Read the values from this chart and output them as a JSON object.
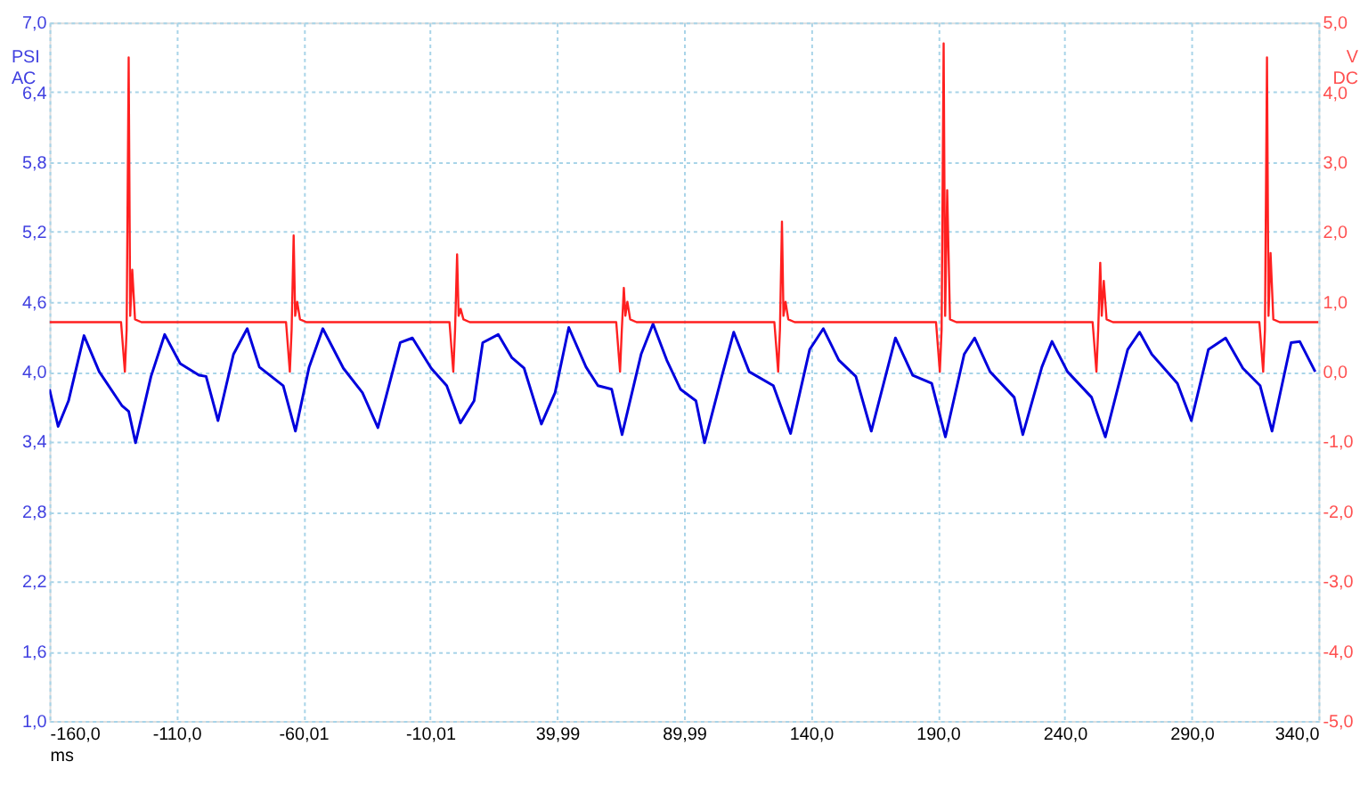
{
  "chart_data": {
    "type": "line",
    "xlabel": "ms",
    "ylabel": "PSI AC",
    "y2label": "V DC",
    "xlim": [
      -160,
      340
    ],
    "xticks": [
      {
        "value": -160,
        "label": "-160,0"
      },
      {
        "value": -110,
        "label": "-110,0"
      },
      {
        "value": -60.01,
        "label": "-60,01"
      },
      {
        "value": -10.01,
        "label": "-10,01"
      },
      {
        "value": 39.99,
        "label": "39,99"
      },
      {
        "value": 89.99,
        "label": "89,99"
      },
      {
        "value": 140,
        "label": "140,0"
      },
      {
        "value": 190,
        "label": "190,0"
      },
      {
        "value": 240,
        "label": "240,0"
      },
      {
        "value": 290,
        "label": "290,0"
      },
      {
        "value": 340,
        "label": "340,0"
      }
    ],
    "ylim": [
      1.0,
      7.0
    ],
    "yticks": [
      {
        "value": 1.0,
        "label": "1,0"
      },
      {
        "value": 1.6,
        "label": "1,6"
      },
      {
        "value": 2.2,
        "label": "2,2"
      },
      {
        "value": 2.8,
        "label": "2,8"
      },
      {
        "value": 3.4,
        "label": "3,4"
      },
      {
        "value": 4.0,
        "label": "4,0"
      },
      {
        "value": 4.6,
        "label": "4,6"
      },
      {
        "value": 5.2,
        "label": "5,2"
      },
      {
        "value": 5.8,
        "label": "5,8"
      },
      {
        "value": 6.4,
        "label": "6,4"
      },
      {
        "value": 7.0,
        "label": "7,0"
      }
    ],
    "y2lim": [
      -5.0,
      5.0
    ],
    "y2ticks": [
      {
        "value": -5,
        "label": "-5,0"
      },
      {
        "value": -4,
        "label": "-4,0"
      },
      {
        "value": -3,
        "label": "-3,0"
      },
      {
        "value": -2,
        "label": "-2,0"
      },
      {
        "value": -1,
        "label": "-1,0"
      },
      {
        "value": 0,
        "label": "0,0"
      },
      {
        "value": 1,
        "label": "1,0"
      },
      {
        "value": 2,
        "label": "2,0"
      },
      {
        "value": 3,
        "label": "3,0"
      },
      {
        "value": 4,
        "label": "4,0"
      },
      {
        "value": 5,
        "label": "5,0"
      }
    ],
    "grid": true,
    "series": [
      {
        "color": "#0000dd",
        "x": [
          -160,
          -156.6,
          -152.5,
          -146.4,
          -140.4,
          -131.5,
          -128.8,
          -126.1,
          -120.0,
          -114.6,
          -108.5,
          -101.1,
          -98.3,
          -93.6,
          -87.5,
          -82.1,
          -77.3,
          -67.9,
          -63.1,
          -57.7,
          -52.3,
          -44.2,
          -36.7,
          -30.6,
          -21.8,
          -17.0,
          -9.6,
          -3.5,
          1.9,
          7.3,
          10.7,
          16.8,
          22.2,
          27.0,
          33.8,
          39.2,
          44.6,
          51.4,
          56.1,
          61.5,
          65.6,
          73.1,
          77.8,
          83.2,
          88.6,
          94.7,
          98.1,
          104.9,
          109.6,
          115.7,
          125.2,
          132.0,
          139.5,
          144.9,
          151.0,
          157.7,
          163.8,
          173.3,
          180.1,
          187.6,
          193.0,
          200.4,
          204.5,
          210.6,
          220.1,
          223.5,
          231.0,
          235.0,
          241.1,
          250.6,
          256.0,
          264.8,
          269.5,
          274.3,
          284.4,
          289.9,
          296.6,
          303.4,
          310.2,
          317.0,
          321.7,
          329.2,
          332.6,
          338.7
        ],
        "values": [
          3.85,
          3.53,
          3.75,
          4.31,
          4.0,
          3.71,
          3.66,
          3.39,
          3.96,
          4.32,
          4.07,
          3.97,
          3.96,
          3.58,
          4.15,
          4.37,
          4.04,
          3.88,
          3.49,
          4.04,
          4.37,
          4.03,
          3.82,
          3.52,
          4.25,
          4.29,
          4.03,
          3.88,
          3.56,
          3.75,
          4.25,
          4.32,
          4.12,
          4.03,
          3.55,
          3.82,
          4.38,
          4.04,
          3.88,
          3.85,
          3.46,
          4.15,
          4.41,
          4.1,
          3.85,
          3.75,
          3.39,
          3.96,
          4.34,
          4.0,
          3.88,
          3.47,
          4.19,
          4.37,
          4.1,
          3.96,
          3.49,
          4.29,
          3.97,
          3.9,
          3.44,
          4.15,
          4.29,
          4.0,
          3.78,
          3.46,
          4.04,
          4.26,
          4.0,
          3.78,
          3.44,
          4.19,
          4.34,
          4.15,
          3.9,
          3.58,
          4.19,
          4.29,
          4.03,
          3.88,
          3.49,
          4.25,
          4.26,
          4.0
        ]
      },
      {
        "color": "#ff2020",
        "axis": "y2",
        "x": [
          -160,
          -131.8,
          -130.3,
          -129.6,
          -128.8,
          -128.2,
          -127.4,
          -126.3,
          -123.8,
          -66.8,
          -65.3,
          -64.6,
          -63.8,
          -63.2,
          -62.4,
          -61.3,
          -58.8,
          -2.4,
          -0.9,
          -0.2,
          0.6,
          1.2,
          2.0,
          3.1,
          5.6,
          63.3,
          64.8,
          65.5,
          66.3,
          66.9,
          67.7,
          68.8,
          71.3,
          125.6,
          127.1,
          127.8,
          128.6,
          129.2,
          130.0,
          131.1,
          133.6,
          189.3,
          190.8,
          191.5,
          192.3,
          192.9,
          193.7,
          194.8,
          197.3,
          251.0,
          252.5,
          253.2,
          254.0,
          254.6,
          255.4,
          256.5,
          259.0,
          316.7,
          318.2,
          318.9,
          319.7,
          320.3,
          321.1,
          322.2,
          324.7,
          340
        ],
        "values": [
          0.71,
          0.71,
          0.0,
          0.6,
          4.5,
          0.8,
          1.46,
          0.75,
          0.71,
          0.71,
          0.0,
          0.6,
          1.95,
          0.8,
          1.0,
          0.75,
          0.71,
          0.71,
          0.0,
          0.6,
          1.68,
          0.8,
          0.9,
          0.75,
          0.71,
          0.71,
          0.0,
          0.6,
          1.2,
          0.8,
          1.0,
          0.75,
          0.71,
          0.71,
          0.0,
          0.6,
          2.15,
          0.8,
          1.0,
          0.75,
          0.71,
          0.71,
          0.0,
          0.6,
          4.7,
          0.8,
          2.6,
          0.75,
          0.71,
          0.71,
          0.0,
          0.6,
          1.56,
          0.8,
          1.3,
          0.75,
          0.71,
          0.71,
          0.0,
          0.6,
          4.5,
          0.8,
          1.7,
          0.75,
          0.71,
          0.71
        ]
      }
    ]
  }
}
